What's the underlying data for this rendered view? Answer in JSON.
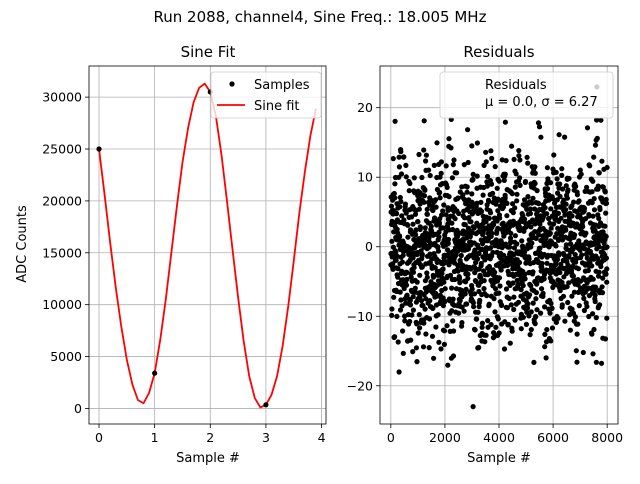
{
  "figure": {
    "suptitle": "Run 2088, channel4, Sine Freq.: 18.005 MHz"
  },
  "chart_data": [
    {
      "type": "line",
      "title": "Sine Fit",
      "xlabel": "Sample #",
      "ylabel": "ADC Counts",
      "xlim": [
        -0.18,
        4.08
      ],
      "ylim": [
        -1500,
        33000
      ],
      "xticks": [
        0,
        1,
        2,
        3,
        4
      ],
      "yticks": [
        0,
        5000,
        10000,
        15000,
        20000,
        25000,
        30000
      ],
      "grid": true,
      "legend": {
        "placement": "top-right",
        "entries": [
          "Samples",
          "Sine fit"
        ]
      },
      "series": [
        {
          "name": "Samples",
          "kind": "scatter",
          "color": "#000000",
          "x": [
            0,
            1,
            2,
            3
          ],
          "y": [
            25000,
            3400,
            30500,
            350
          ]
        },
        {
          "name": "Sine fit",
          "kind": "line",
          "color": "#ff0000",
          "x": [
            0.0,
            0.1,
            0.2,
            0.3,
            0.4,
            0.5,
            0.6,
            0.7,
            0.8,
            0.9,
            1.0,
            1.1,
            1.2,
            1.3,
            1.4,
            1.5,
            1.6,
            1.7,
            1.8,
            1.9,
            2.0,
            2.1,
            2.2,
            2.3,
            2.4,
            2.5,
            2.6,
            2.7,
            2.8,
            2.9,
            3.0,
            3.1,
            3.2,
            3.3,
            3.4,
            3.5,
            3.6,
            3.7,
            3.8,
            3.9
          ],
          "y": [
            25000,
            20600,
            16000,
            11700,
            7900,
            4700,
            2300,
            800,
            500,
            1500,
            3400,
            6600,
            10500,
            15000,
            19500,
            23700,
            27000,
            29500,
            30900,
            31300,
            30500,
            28200,
            24500,
            20000,
            15300,
            10700,
            6500,
            3100,
            1000,
            100,
            350,
            1300,
            3100,
            6000,
            9800,
            14200,
            18800,
            22800,
            26300,
            28900
          ]
        }
      ]
    },
    {
      "type": "scatter",
      "title": "Residuals",
      "xlabel": "Sample #",
      "ylabel": "",
      "xlim": [
        -400,
        8400
      ],
      "ylim": [
        -25.5,
        26
      ],
      "xticks": [
        0,
        2000,
        4000,
        6000,
        8000
      ],
      "yticks": [
        -20,
        -10,
        0,
        10,
        20
      ],
      "grid": true,
      "legend": {
        "placement": "top-right",
        "entries": [
          "Residuals",
          "μ = 0.0, σ = 6.27"
        ]
      },
      "series": [
        {
          "name": "Residuals",
          "color": "#000000",
          "n_points": 8000,
          "mean": 0.0,
          "std": 6.27,
          "x_range": [
            0,
            8000
          ],
          "y_range": [
            -23,
            23
          ]
        }
      ]
    }
  ]
}
